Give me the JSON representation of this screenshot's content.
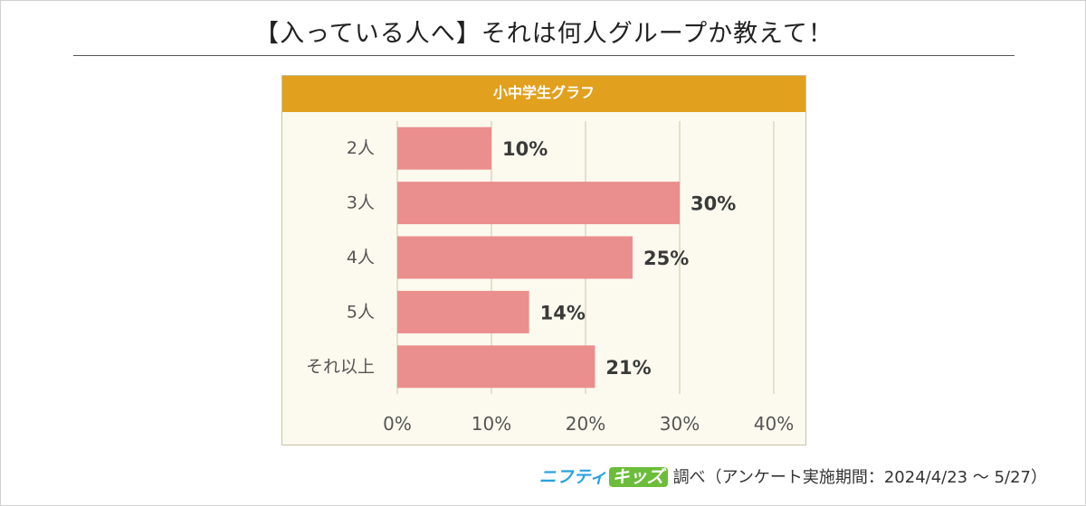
{
  "page": {
    "title": "【入っている人へ】それは何人グループか教えて！"
  },
  "chart_data": {
    "type": "bar",
    "orientation": "horizontal",
    "title": "小中学生グラフ",
    "categories": [
      "2人",
      "3人",
      "4人",
      "5人",
      "それ以上"
    ],
    "values": [
      10,
      30,
      25,
      14,
      21
    ],
    "data_labels": [
      "10%",
      "30%",
      "25%",
      "14%",
      "21%"
    ],
    "x_ticks": [
      "0%",
      "10%",
      "20%",
      "30%",
      "40%"
    ],
    "xlim": [
      0,
      40
    ],
    "grid": true,
    "bar_color": "#ea8e8e",
    "header_color": "#e1a01e",
    "panel_color": "#fcfaee"
  },
  "footer": {
    "brand_part1": "ニフティ",
    "brand_part2": "キッズ",
    "note": "調べ（アンケート実施期間：2024/4/23 ～ 5/27）"
  }
}
